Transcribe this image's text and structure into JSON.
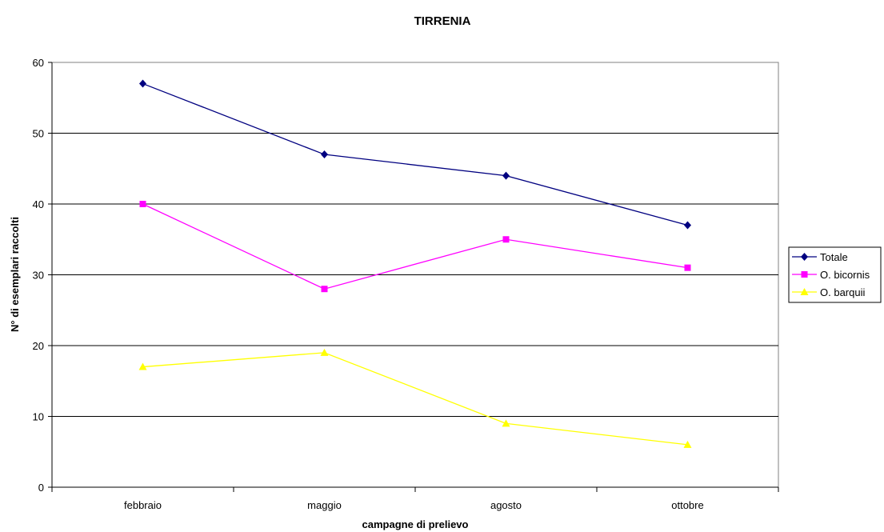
{
  "chart_data": {
    "type": "line",
    "title": "TIRRENIA",
    "xlabel": "campagne di prelievo",
    "ylabel": "N° di esemplari raccolti",
    "categories": [
      "febbraio",
      "maggio",
      "agosto",
      "ottobre"
    ],
    "ylim": [
      0,
      60
    ],
    "yticks": [
      0,
      10,
      20,
      30,
      40,
      50,
      60
    ],
    "grid": "horizontal",
    "legend_position": "right",
    "series": [
      {
        "name": "Totale",
        "values": [
          57,
          47,
          44,
          37
        ],
        "color": "#000080",
        "marker": "diamond"
      },
      {
        "name": "O. bicornis",
        "values": [
          40,
          28,
          35,
          31
        ],
        "color": "#FF00FF",
        "marker": "square"
      },
      {
        "name": "O. barquii",
        "values": [
          17,
          19,
          9,
          6
        ],
        "color": "#FFFF00",
        "marker": "triangle"
      }
    ]
  }
}
